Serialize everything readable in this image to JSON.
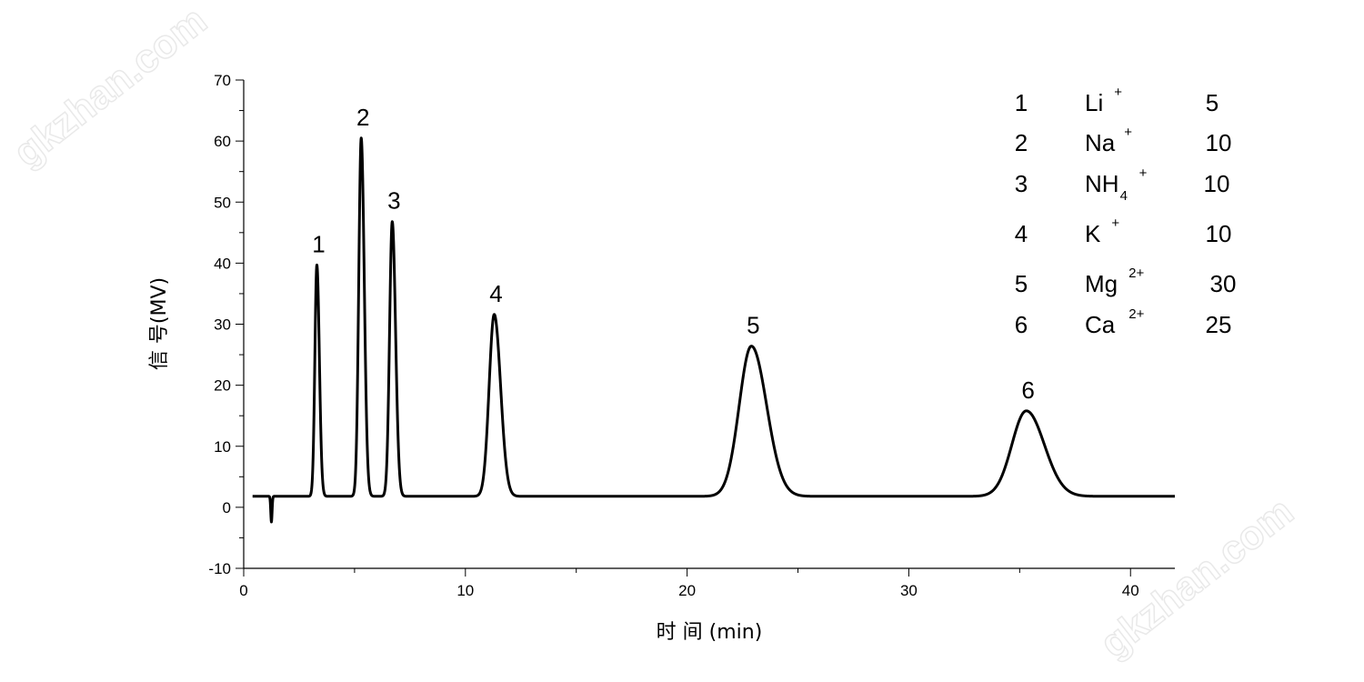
{
  "watermark": "gkzhan.com",
  "chart_data": {
    "type": "line",
    "xlabel": "时 间  (min)",
    "ylabel": "信 号(MV)",
    "xlim": [
      0,
      42
    ],
    "ylim": [
      -10,
      70
    ],
    "x_ticks": [
      0,
      10,
      20,
      30,
      40
    ],
    "y_ticks": [
      -10,
      0,
      10,
      20,
      30,
      40,
      50,
      60,
      70
    ],
    "grid": false,
    "legend_position": "top-right",
    "baseline": 1.8,
    "system_dip": {
      "x": 1.25,
      "y": -2.4
    },
    "peaks": [
      {
        "label": "1",
        "rt": 3.3,
        "height": 39.7,
        "ion": "Li",
        "sub": "",
        "charge": "+",
        "conc": "5"
      },
      {
        "label": "2",
        "rt": 5.3,
        "height": 60.5,
        "ion": "Na",
        "sub": "",
        "charge": "+",
        "conc": "10"
      },
      {
        "label": "3",
        "rt": 6.7,
        "height": 46.8,
        "ion": "NH",
        "sub": "4",
        "charge": "+",
        "conc": "10"
      },
      {
        "label": "4",
        "rt": 11.3,
        "height": 31.6,
        "ion": "K",
        "sub": "",
        "charge": "+",
        "conc": "10"
      },
      {
        "label": "5",
        "rt": 22.9,
        "height": 26.4,
        "ion": "Mg",
        "sub": "",
        "charge": "2+",
        "conc": "30"
      },
      {
        "label": "6",
        "rt": 35.3,
        "height": 15.8,
        "ion": "Ca",
        "sub": "",
        "charge": "2+",
        "conc": "25"
      }
    ]
  }
}
